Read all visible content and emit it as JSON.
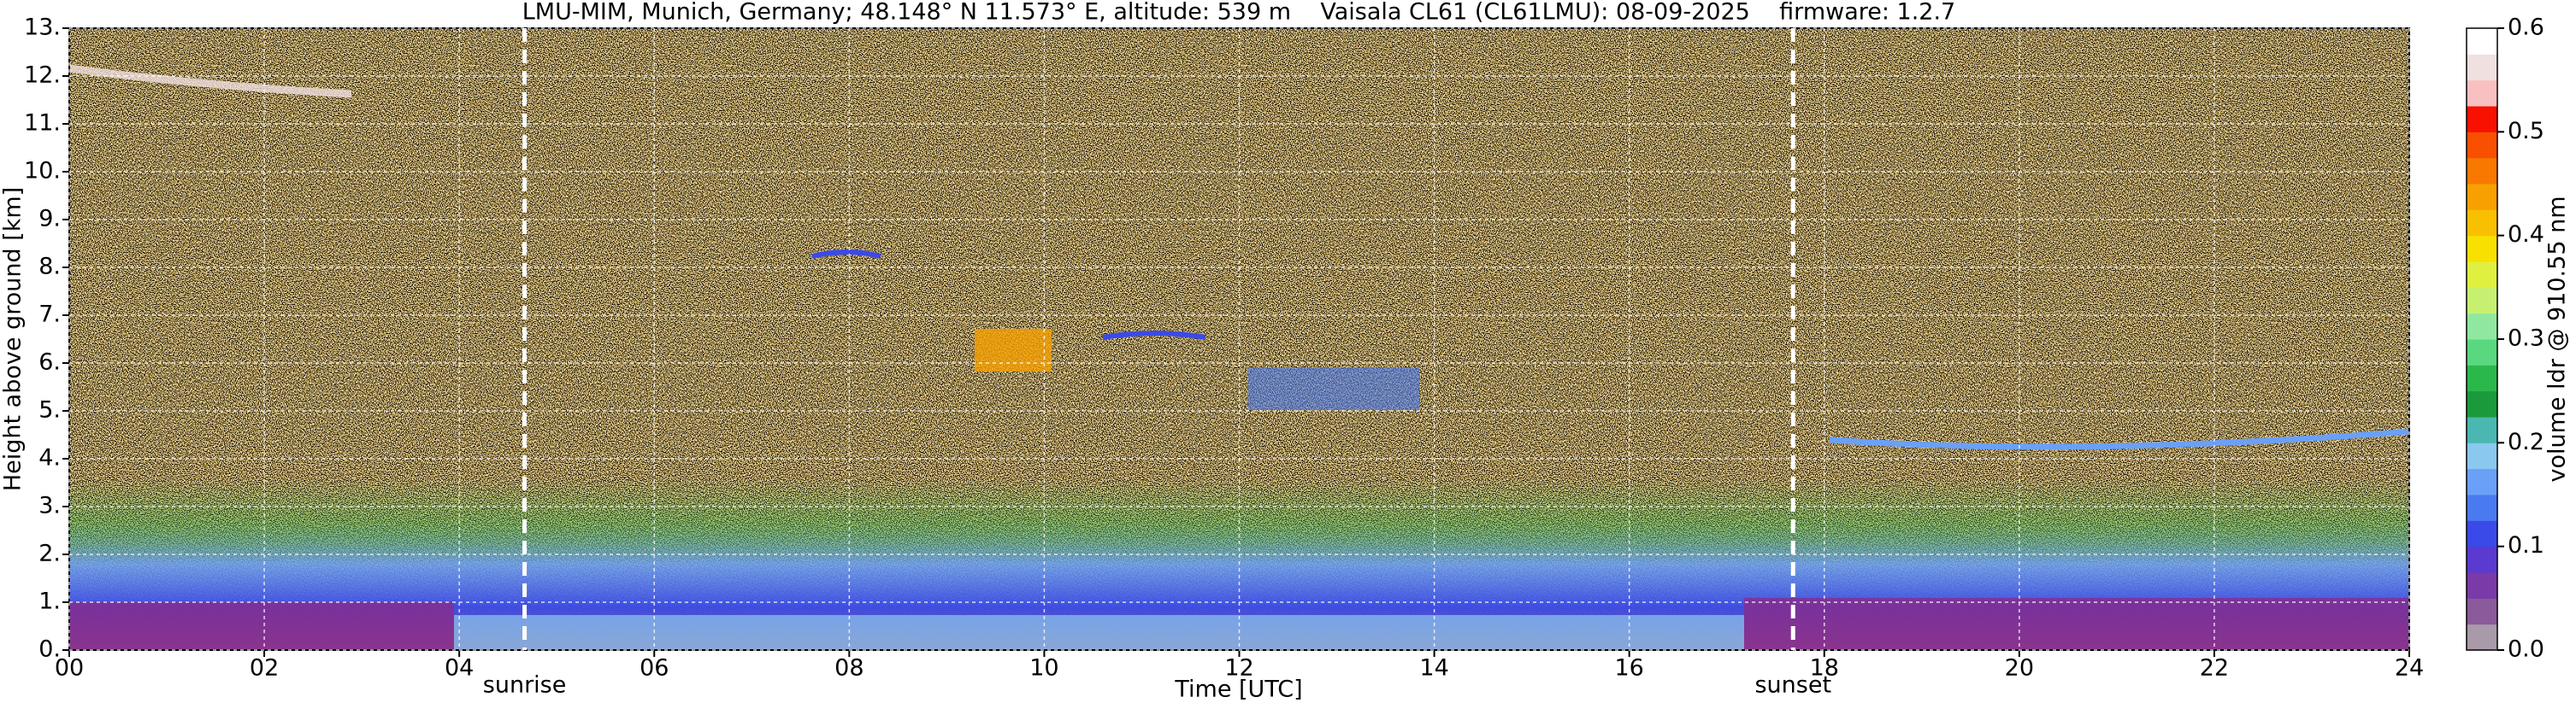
{
  "chart_data": {
    "type": "heatmap",
    "title": "LMU-MIM, Munich, Germany; 48.148° N 11.573° E, altitude: 539 m    Vaisala CL61 (CL61LMU): 08-09-2025    firmware: 1.2.7",
    "x_label": "Time [UTC]",
    "y_label": "Height above ground [km]",
    "colorbar_label": "volume ldr @ 910.55 nm",
    "xlim": [
      0,
      24
    ],
    "xticks": [
      {
        "value": 0,
        "label": "00"
      },
      {
        "value": 2,
        "label": "02"
      },
      {
        "value": 4,
        "label": "04"
      },
      {
        "value": 6,
        "label": "06"
      },
      {
        "value": 8,
        "label": "08"
      },
      {
        "value": 10,
        "label": "10"
      },
      {
        "value": 12,
        "label": "12"
      },
      {
        "value": 14,
        "label": "14"
      },
      {
        "value": 16,
        "label": "16"
      },
      {
        "value": 18,
        "label": "18"
      },
      {
        "value": 20,
        "label": "20"
      },
      {
        "value": 22,
        "label": "22"
      },
      {
        "value": 24,
        "label": "24"
      }
    ],
    "ylim": [
      0,
      13
    ],
    "yticks": [
      {
        "value": 0,
        "label": "0."
      },
      {
        "value": 1,
        "label": "1."
      },
      {
        "value": 2,
        "label": "2."
      },
      {
        "value": 3,
        "label": "3."
      },
      {
        "value": 4,
        "label": "4."
      },
      {
        "value": 5,
        "label": "5."
      },
      {
        "value": 6,
        "label": "6."
      },
      {
        "value": 7,
        "label": "7."
      },
      {
        "value": 8,
        "label": "8."
      },
      {
        "value": 9,
        "label": "9."
      },
      {
        "value": 10,
        "label": "10."
      },
      {
        "value": 11,
        "label": "11."
      },
      {
        "value": 12,
        "label": "12."
      },
      {
        "value": 13,
        "label": "13."
      }
    ],
    "clim": [
      0,
      0.6
    ],
    "cticks": [
      {
        "value": 0,
        "label": "0.0"
      },
      0.1,
      0.2,
      0.3,
      0.4,
      0.5,
      0.6
    ],
    "colors": [
      "#a89aa8",
      "#8a5a9a",
      "#7a3aa8",
      "#5a3ad0",
      "#3a4ae8",
      "#4a7af0",
      "#6aa0f8",
      "#8ac8f0",
      "#4ab8b0",
      "#1a9a3a",
      "#2ab84a",
      "#5ad880",
      "#90e8a0",
      "#c8f070",
      "#e0f040",
      "#f8e000",
      "#f8c000",
      "#f8a000",
      "#f87800",
      "#f85000",
      "#f81000",
      "#f8c0c0",
      "#f0e0e0",
      "#ffffff"
    ],
    "grid": true,
    "annotations": [
      {
        "label": "sunrise",
        "x": 4.67
      },
      {
        "label": "sunset",
        "x": 17.68
      }
    ]
  }
}
